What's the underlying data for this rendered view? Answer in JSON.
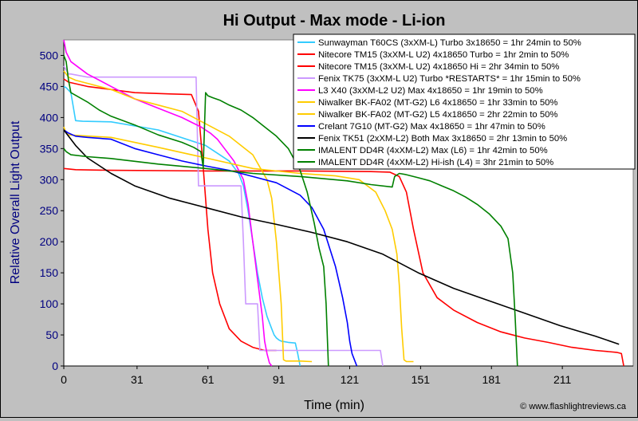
{
  "chart_data": {
    "type": "line",
    "title": "Hi Output - Max mode - Li-ion",
    "xlabel": "Time (min)",
    "ylabel": "Relative Overall Light Output",
    "xlim": [
      0,
      241
    ],
    "ylim": [
      0,
      525
    ],
    "xticks": [
      0,
      31,
      61,
      91,
      121,
      151,
      181,
      211
    ],
    "yticks": [
      0,
      50,
      100,
      150,
      200,
      250,
      300,
      350,
      400,
      450,
      500
    ],
    "grid": false,
    "legend_position": "top-right",
    "copyright": "© www.flashlightreviews.ca",
    "series": [
      {
        "name": "Sunwayman T60CS (3xXM-L) Turbo 3x18650 = 1hr 24min to 50%",
        "color": "#33ccff",
        "x": [
          0,
          1,
          3,
          5,
          8,
          20,
          40,
          60,
          70,
          74,
          76,
          78,
          80,
          82,
          84,
          86,
          88,
          89,
          90,
          91,
          92,
          95,
          98,
          99,
          100
        ],
        "y": [
          450,
          448,
          440,
          395,
          394,
          393,
          380,
          355,
          330,
          310,
          290,
          250,
          200,
          150,
          110,
          80,
          60,
          50,
          45,
          42,
          40,
          38,
          37,
          20,
          0
        ]
      },
      {
        "name": "Nitecore TM15 (3xXM-L U2) 4x18650 Turbo = 1hr 2min to 50%",
        "color": "#ff0000",
        "x": [
          0,
          2,
          10,
          30,
          45,
          54,
          57,
          59,
          61,
          63,
          66,
          70,
          75,
          80,
          85,
          90
        ],
        "y": [
          462,
          457,
          450,
          440,
          438,
          437,
          410,
          320,
          220,
          150,
          100,
          60,
          40,
          30,
          25,
          25
        ]
      },
      {
        "name": "Nitecore TM15 (3xXM-L U2) 4x18650 Hi = 2hr 34min to 50%",
        "color": "#ff0000",
        "x": [
          0,
          5,
          20,
          60,
          100,
          130,
          138,
          142,
          145,
          148,
          152,
          158,
          165,
          175,
          185,
          195,
          205,
          215,
          225,
          234,
          236,
          237
        ],
        "y": [
          318,
          316,
          315,
          314,
          314,
          313,
          312,
          305,
          280,
          220,
          150,
          110,
          90,
          70,
          55,
          45,
          38,
          30,
          25,
          22,
          20,
          0
        ]
      },
      {
        "name": "Fenix TK75 (3xXM-L U2) Turbo *RESTARTS* = 1hr 15min to 50%",
        "color": "#cc99ff",
        "x": [
          0,
          2,
          3,
          10,
          20,
          25,
          26,
          40,
          56,
          57,
          58,
          60,
          65,
          70,
          75,
          76,
          77,
          79,
          82,
          83,
          85,
          90,
          95,
          100,
          110,
          125,
          134,
          135
        ],
        "y": [
          483,
          470,
          470,
          465,
          465,
          465,
          465,
          465,
          465,
          290,
          290,
          290,
          290,
          290,
          290,
          200,
          100,
          100,
          100,
          25,
          25,
          25,
          25,
          25,
          25,
          25,
          25,
          0
        ]
      },
      {
        "name": "L3 X40 (3xXM-L2 U2) Max 4x18650 = 1hr 19min to 50%",
        "color": "#ff00ff",
        "x": [
          0,
          1,
          3,
          10,
          20,
          30,
          40,
          50,
          58,
          62,
          65,
          68,
          72,
          76,
          78,
          80,
          82,
          84,
          85,
          86,
          87,
          88
        ],
        "y": [
          525,
          505,
          490,
          470,
          450,
          430,
          415,
          400,
          385,
          375,
          365,
          350,
          330,
          300,
          260,
          200,
          140,
          80,
          40,
          20,
          5,
          0
        ]
      },
      {
        "name": "Niwalker BK-FA02 (MT-G2) L6 4x18650 = 1hr 33min to 50%",
        "color": "#ffcc00",
        "x": [
          0,
          2,
          5,
          10,
          20,
          30,
          40,
          50,
          60,
          70,
          80,
          86,
          88,
          90,
          91,
          92,
          93,
          94,
          100,
          105
        ],
        "y": [
          475,
          465,
          460,
          455,
          445,
          430,
          420,
          410,
          390,
          370,
          340,
          300,
          270,
          200,
          150,
          100,
          10,
          8,
          8,
          7
        ]
      },
      {
        "name": "Niwalker BK-FA02 (MT-G2) L5 4x18650 = 2hr 22min to 50%",
        "color": "#ffcc00",
        "x": [
          0,
          1,
          2,
          20,
          40,
          60,
          80,
          100,
          115,
          125,
          132,
          136,
          139,
          141,
          142,
          143,
          144,
          145,
          148
        ],
        "y": [
          385,
          375,
          372,
          368,
          352,
          335,
          318,
          310,
          306,
          300,
          280,
          250,
          220,
          180,
          130,
          60,
          10,
          7,
          7
        ]
      },
      {
        "name": "Crelant 7G10 (MT-G2) Max 4x18650 = 1hr 47min to 50%",
        "color": "#0000ff",
        "x": [
          0,
          2,
          5,
          10,
          20,
          30,
          40,
          50,
          60,
          70,
          80,
          90,
          100,
          105,
          110,
          115,
          118,
          120,
          121,
          122,
          123,
          124
        ],
        "y": [
          380,
          375,
          370,
          368,
          365,
          350,
          340,
          330,
          322,
          315,
          305,
          295,
          275,
          255,
          220,
          160,
          110,
          70,
          40,
          20,
          10,
          0
        ]
      },
      {
        "name": "Fenix TK51 (2xXM-L2) Both Max 3x18650 = 2hr 13min to 50%",
        "color": "#000000",
        "x": [
          0,
          5,
          10,
          20,
          30,
          45,
          60,
          75,
          90,
          105,
          120,
          135,
          150,
          165,
          180,
          195,
          210,
          225,
          235
        ],
        "y": [
          380,
          355,
          335,
          310,
          290,
          270,
          255,
          240,
          228,
          215,
          200,
          180,
          150,
          125,
          105,
          85,
          65,
          48,
          35
        ]
      },
      {
        "name": "IMALENT DD4R (4xXM-L2) Max (L6) = 1hr 42min to 50%",
        "color": "#008000",
        "x": [
          0,
          1,
          2,
          3,
          10,
          15,
          20,
          30,
          40,
          50,
          55,
          58,
          59,
          60,
          61,
          63,
          66,
          70,
          75,
          80,
          85,
          90,
          95,
          100,
          103,
          106,
          108,
          110,
          111,
          112
        ],
        "y": [
          500,
          490,
          460,
          440,
          425,
          412,
          402,
          388,
          372,
          360,
          352,
          345,
          320,
          440,
          435,
          432,
          428,
          420,
          412,
          400,
          385,
          370,
          350,
          315,
          280,
          230,
          190,
          160,
          100,
          0
        ]
      },
      {
        "name": "IMALENT DD4R (4xXM-L2) Hi-ish (L4) = 3hr 21min to 50%",
        "color": "#008000",
        "x": [
          0,
          1,
          3,
          10,
          20,
          40,
          60,
          80,
          100,
          120,
          130,
          139,
          140,
          142,
          145,
          150,
          155,
          160,
          165,
          170,
          175,
          180,
          185,
          188,
          190,
          191,
          192
        ],
        "y": [
          350,
          345,
          340,
          337,
          334,
          325,
          318,
          310,
          305,
          298,
          292,
          288,
          305,
          310,
          308,
          303,
          298,
          290,
          282,
          272,
          260,
          245,
          225,
          205,
          150,
          80,
          0
        ]
      }
    ]
  }
}
